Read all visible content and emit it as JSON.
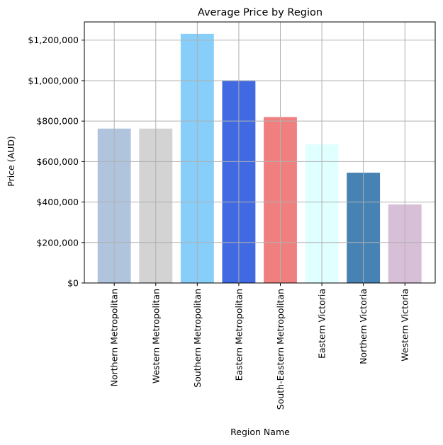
{
  "chart_data": {
    "type": "bar",
    "title": "Average Price by Region",
    "xlabel": "Region Name",
    "ylabel": "Price (AUD)",
    "categories": [
      "Northern Metropolitan",
      "Western Metropolitan",
      "Southern Metropolitan",
      "Eastern Metropolitan",
      "South-Eastern Metropolitan",
      "Eastern Victoria",
      "Northern Victoria",
      "Western Victoria"
    ],
    "values": [
      763000,
      763000,
      1231000,
      998000,
      820000,
      685000,
      545000,
      388000
    ],
    "colors": [
      "#b0c4de",
      "#d3d3d3",
      "#87cefa",
      "#4169e1",
      "#f08080",
      "#e0ffff",
      "#4682b4",
      "#d8bfd8"
    ],
    "ylim": [
      0,
      1290000
    ],
    "yticks": [
      0,
      200000,
      400000,
      600000,
      800000,
      1000000,
      1200000
    ],
    "ytick_labels": [
      "$0",
      "$200,000",
      "$400,000",
      "$600,000",
      "$800,000",
      "$1,000,000",
      "$1,200,000"
    ],
    "grid": true
  }
}
